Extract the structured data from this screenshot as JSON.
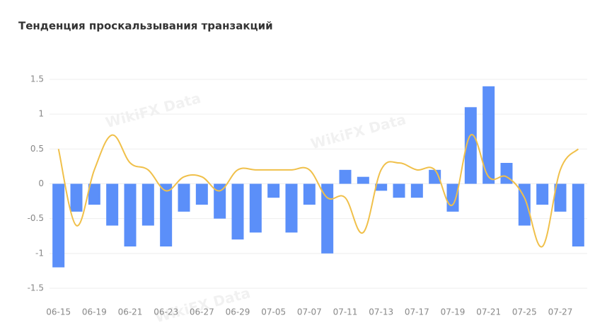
{
  "chart_data": {
    "type": "bar-line",
    "title": "Тенденция проскальзывания транзакций",
    "watermark": "WikiFX Data",
    "categories": [
      "06-15",
      null,
      "06-19",
      null,
      "06-21",
      null,
      "06-23",
      null,
      "06-27",
      null,
      "06-29",
      null,
      "07-05",
      null,
      "07-07",
      null,
      "07-11",
      null,
      "07-13",
      null,
      "07-17",
      null,
      "07-19",
      null,
      "07-21",
      null,
      "07-25",
      null,
      "07-27",
      null
    ],
    "series": [
      {
        "type": "bar",
        "color": "#5b8ff9",
        "values": [
          -1.2,
          -0.4,
          -0.3,
          -0.6,
          -0.9,
          -0.6,
          -0.9,
          -0.4,
          -0.3,
          -0.5,
          -0.8,
          -0.7,
          -0.2,
          -0.7,
          -0.3,
          -1.0,
          0.2,
          0.1,
          -0.1,
          -0.2,
          -0.2,
          0.2,
          -0.4,
          1.1,
          1.4,
          0.3,
          -0.6,
          -0.3,
          -0.4,
          -0.9
        ]
      },
      {
        "type": "line",
        "color": "#f0c04a",
        "values": [
          0.5,
          -0.6,
          0.2,
          0.7,
          0.3,
          0.2,
          -0.1,
          0.1,
          0.1,
          -0.1,
          0.2,
          0.2,
          0.2,
          0.2,
          0.2,
          -0.2,
          -0.2,
          -0.7,
          0.2,
          0.3,
          0.2,
          0.2,
          -0.3,
          0.7,
          0.1,
          0.1,
          -0.2,
          -0.9,
          0.2,
          0.5
        ]
      }
    ],
    "ylim": [
      -1.5,
      1.5
    ],
    "yticks": [
      -1.5,
      -1,
      -0.5,
      0,
      0.5,
      1,
      1.5
    ],
    "grid": true
  }
}
